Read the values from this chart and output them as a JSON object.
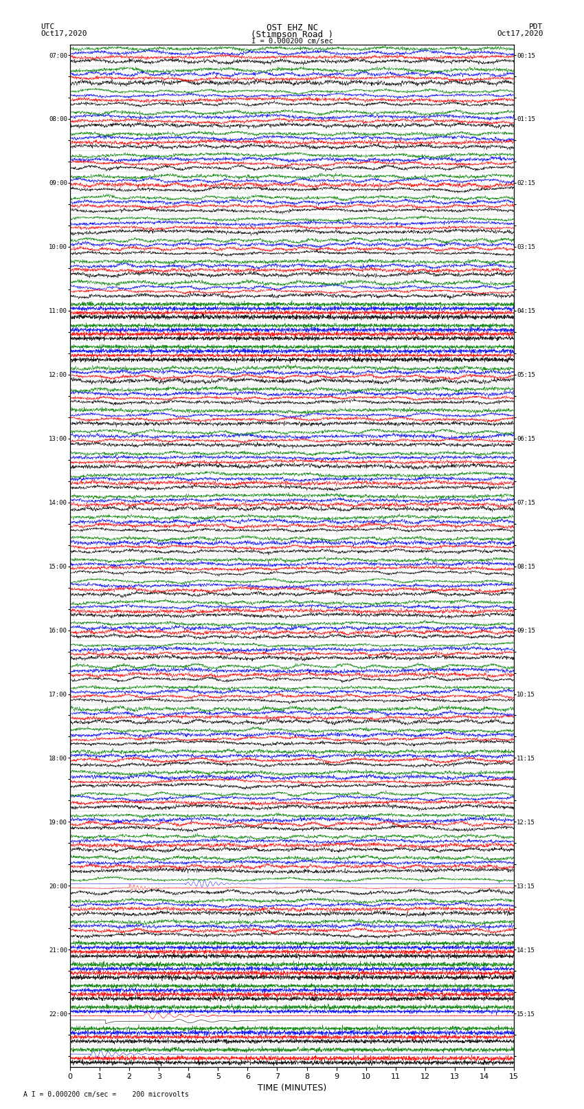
{
  "title_line1": "OST EHZ NC",
  "title_line2": "(Stimpson Road )",
  "scale_text": "I = 0.000200 cm/sec",
  "left_label": "UTC",
  "left_date": "Oct17,2020",
  "right_label": "PDT",
  "right_date": "Oct17,2020",
  "bottom_label": "TIME (MINUTES)",
  "footnote": "A I = 0.000200 cm/sec =    200 microvolts",
  "bg_color": "#ffffff",
  "trace_colors": [
    "black",
    "red",
    "blue",
    "green"
  ],
  "num_rows": 48,
  "grid_color": "#aaaaaa",
  "trace_linewidth": 0.4,
  "fig_width": 8.5,
  "fig_height": 16.13
}
